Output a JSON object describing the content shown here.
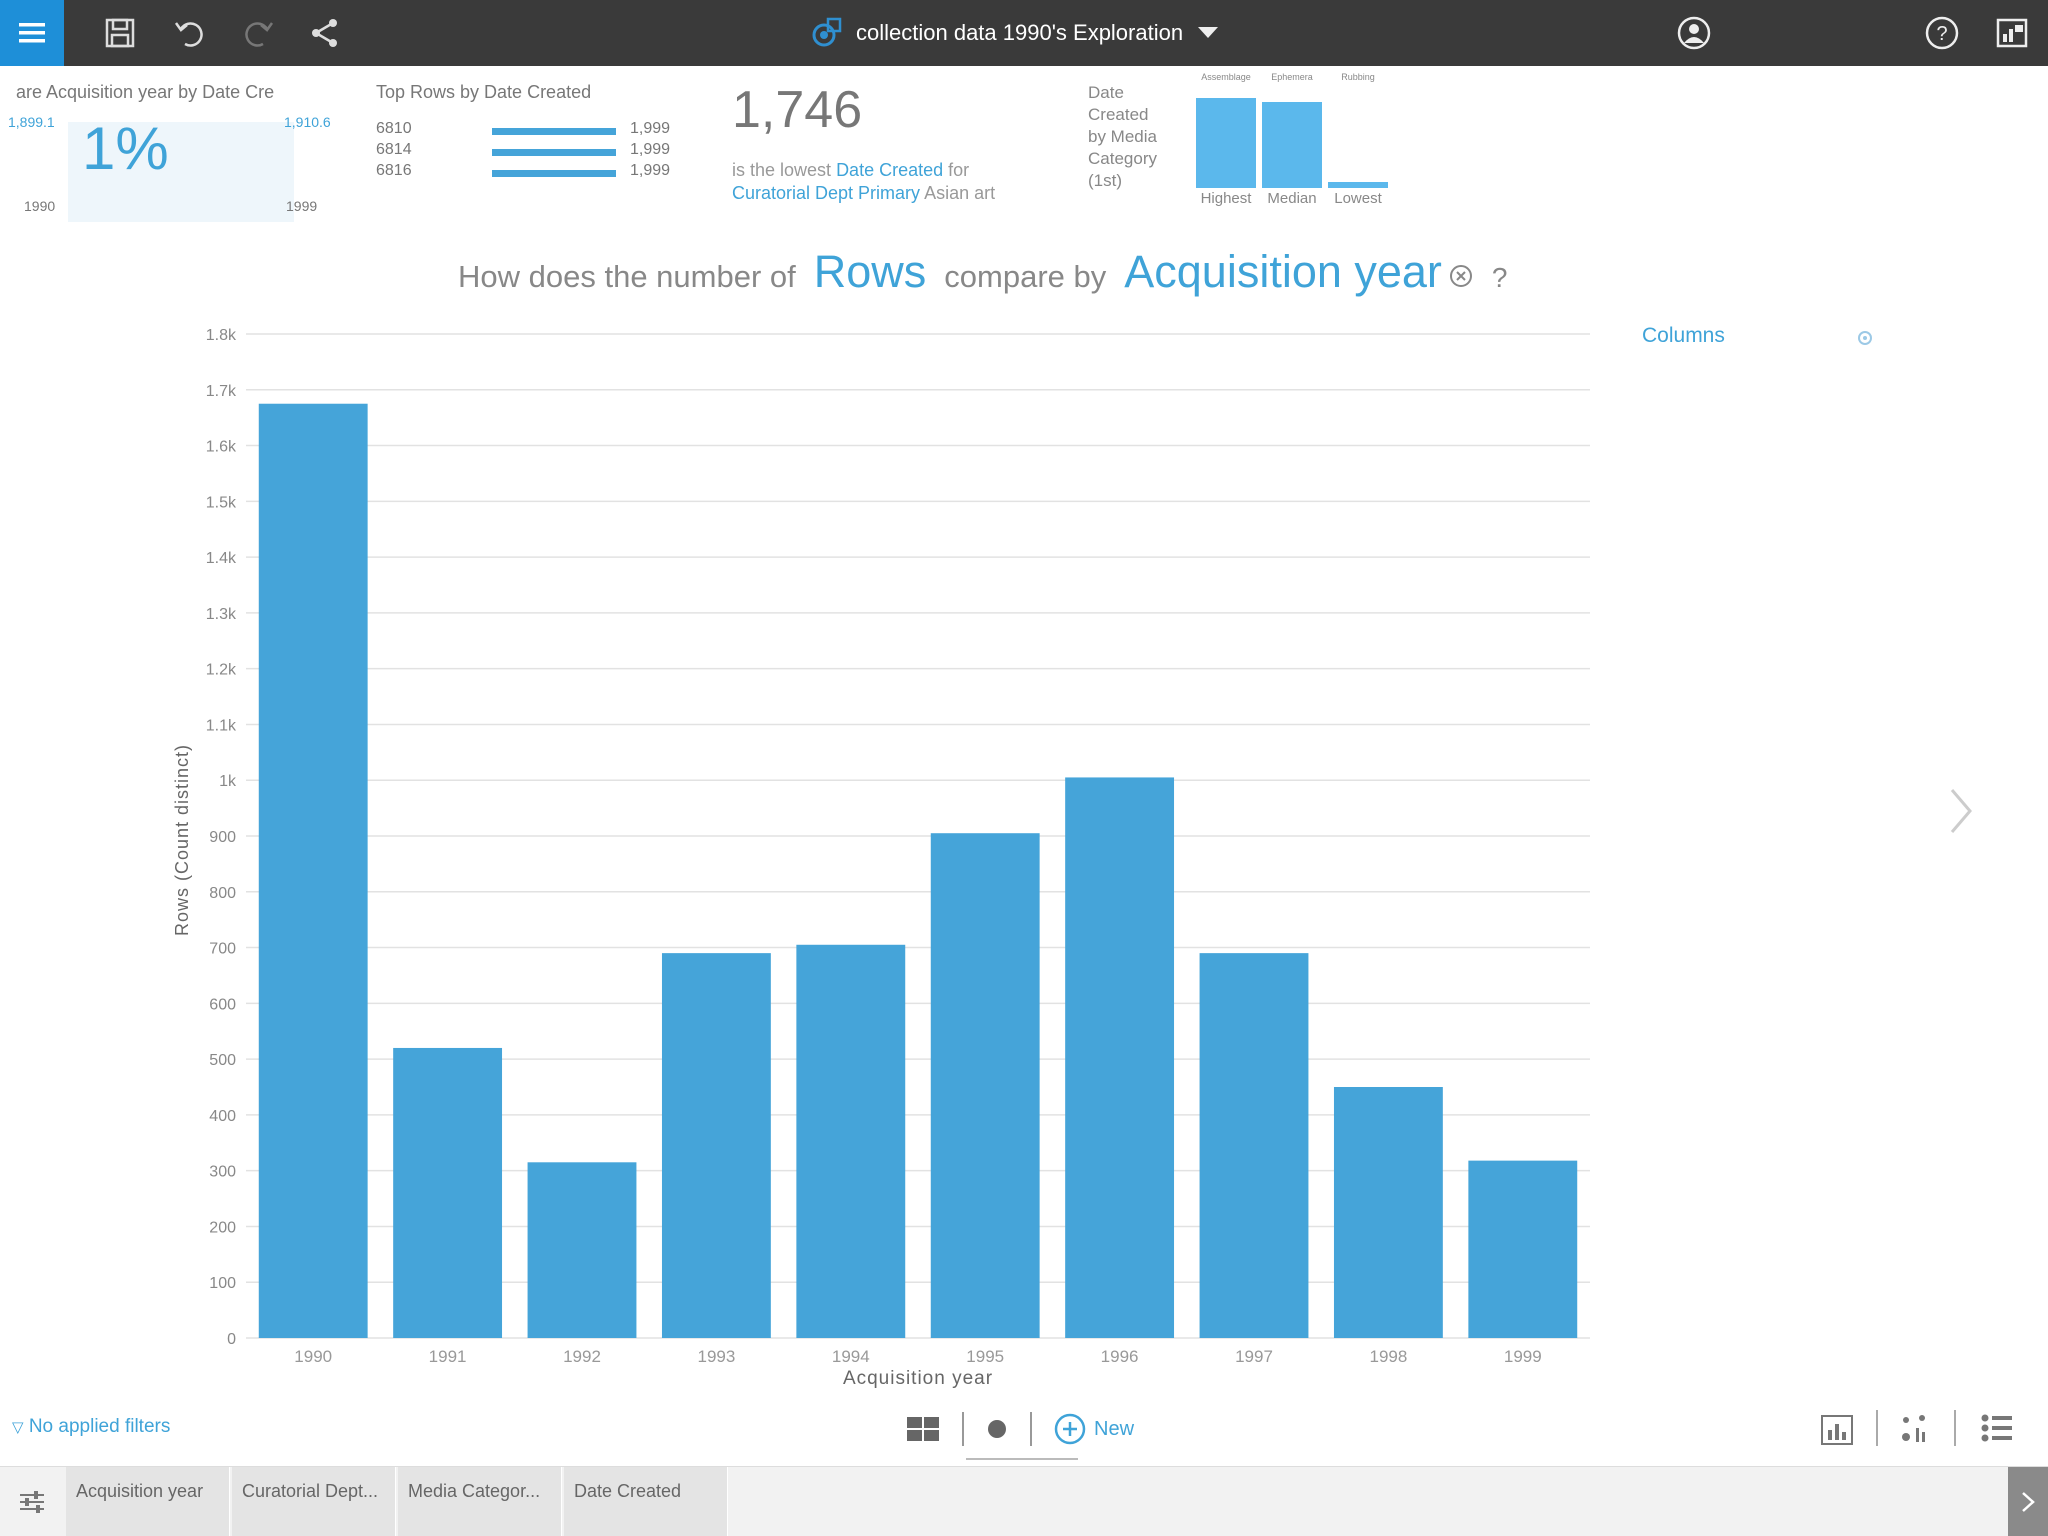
{
  "header": {
    "title": "collection data 1990's Exploration",
    "icons": [
      "menu-icon",
      "save-icon",
      "undo-icon",
      "redo-icon",
      "share-icon",
      "exploration-icon",
      "chevron-down-icon",
      "user-icon",
      "help-icon",
      "app-icon"
    ]
  },
  "insights": {
    "trend": {
      "title": "are Acquisition year by Date Cre",
      "value": "1%",
      "min_label": "1,899.1",
      "max_label": "1,910.6",
      "start_year": "1990",
      "end_year": "1999"
    },
    "top_rows": {
      "title": "Top Rows by Date Created",
      "rows": [
        {
          "id": "6810",
          "value": "1,999"
        },
        {
          "id": "6814",
          "value": "1,999"
        },
        {
          "id": "6816",
          "value": "1,999"
        }
      ]
    },
    "lowest": {
      "value": "1,746",
      "text_pre": "is the lowest",
      "field": "Date Created",
      "text_for": "for",
      "dept": "Curatorial Dept Primary",
      "dept_value": "Asian art"
    },
    "media": {
      "title_lines": [
        "Date",
        "Created",
        "by Media",
        "Category",
        "(1st)"
      ],
      "bars": [
        {
          "label": "Highest",
          "top_label": "Assemblage",
          "level": 0.9
        },
        {
          "label": "Median",
          "top_label": "Ephemera",
          "level": 0.86
        },
        {
          "label": "Lowest",
          "top_label": "Rubbing",
          "level": 0.06
        }
      ]
    }
  },
  "question": {
    "prefix": "How does the number of",
    "measure": "Rows",
    "middle": "compare by",
    "dimension": "Acquisition year",
    "help": "?"
  },
  "side_panel": {
    "columns_label": "Columns"
  },
  "chart_data": {
    "type": "bar",
    "categories": [
      "1990",
      "1991",
      "1992",
      "1993",
      "1994",
      "1995",
      "1996",
      "1997",
      "1998",
      "1999"
    ],
    "values": [
      1675,
      520,
      315,
      690,
      705,
      905,
      1005,
      690,
      450,
      318
    ],
    "xlabel": "Acquisition year",
    "ylabel": "Rows (Count distinct)",
    "ylim": [
      0,
      1800
    ],
    "yticks": [
      "0",
      "100",
      "200",
      "300",
      "400",
      "500",
      "600",
      "700",
      "800",
      "900",
      "1k",
      "1.1k",
      "1.2k",
      "1.3k",
      "1.4k",
      "1.5k",
      "1.6k",
      "1.7k",
      "1.8k"
    ],
    "grid": true,
    "bar_color": "#45a4d9"
  },
  "footer": {
    "filters_label": "No applied filters",
    "new_label": "New",
    "tabs": [
      "Acquisition year",
      "Curatorial Dept...",
      "Media Categor...",
      "Date Created"
    ]
  }
}
